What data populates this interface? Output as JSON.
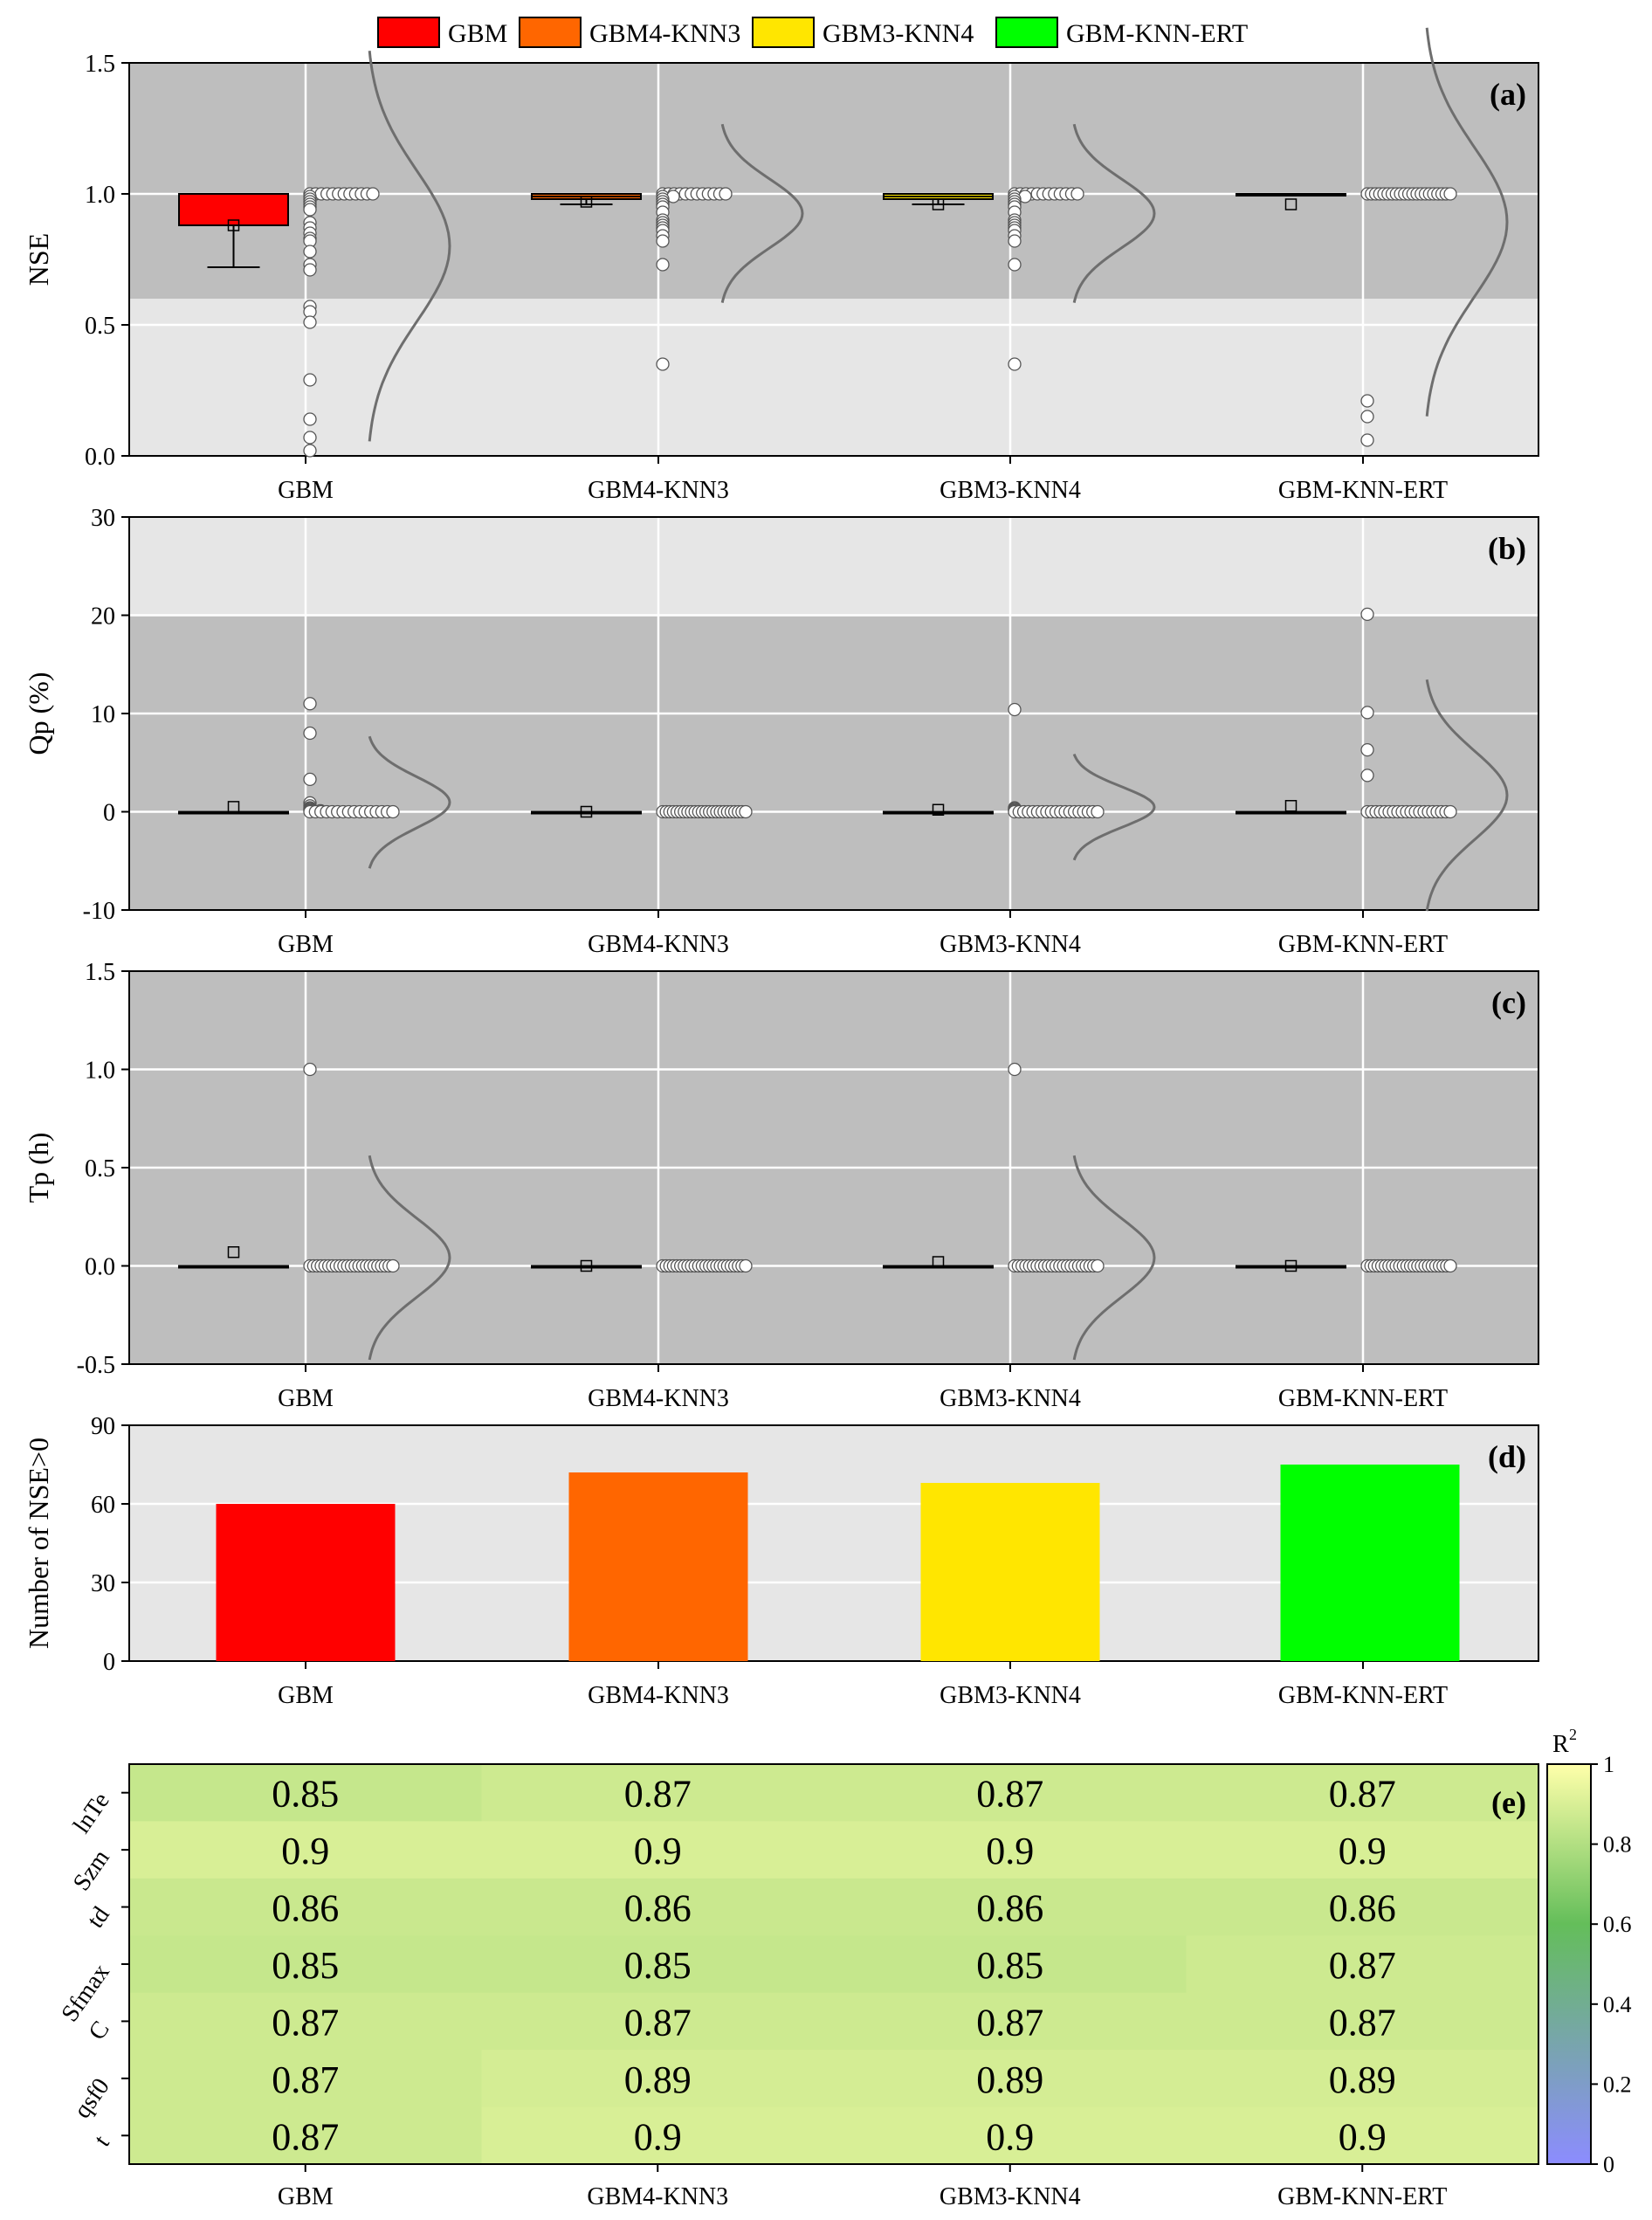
{
  "colors": {
    "GBM": "#ff0000",
    "GBM4-KNN3": "#ff6600",
    "GBM3-KNN4": "#ffe600",
    "GBM-KNN-ERT": "#00ff00",
    "panel_dark": "#bebebe",
    "panel_light": "#e6e6e6",
    "point_fill": "#ffffff",
    "curve": "#6e6e6e"
  },
  "legend": [
    "GBM",
    "GBM4-KNN3",
    "GBM3-KNN4",
    "GBM-KNN-ERT"
  ],
  "chart_data": [
    {
      "panel": "(a)",
      "type": "box",
      "ylabel": "NSE",
      "ylim": [
        0.0,
        1.5
      ],
      "yticks": [
        "0.0",
        "0.5",
        "1.0",
        "1.5"
      ],
      "categories": [
        "GBM",
        "GBM4-KNN3",
        "GBM3-KNN4",
        "GBM-KNN-ERT"
      ],
      "shaded_band": {
        "from": 0.6,
        "to": 1.5,
        "shade": "dark"
      },
      "series": [
        {
          "name": "GBM",
          "q1": 0.88,
          "median": 1.0,
          "q3": 1.0,
          "whisker_low": 0.72,
          "whisker_high": 1.0,
          "mean": 0.88,
          "points": [
            1.0,
            1.0,
            1.0,
            1.0,
            1.0,
            1.0,
            1.0,
            1.0,
            1.0,
            1.0,
            1.0,
            1.0,
            0.99,
            0.98,
            0.97,
            0.96,
            0.95,
            0.94,
            0.89,
            0.87,
            0.85,
            0.83,
            0.82,
            0.78,
            0.73,
            0.71,
            0.57,
            0.55,
            0.51,
            0.29,
            0.14,
            0.07,
            0.02
          ]
        },
        {
          "name": "GBM4-KNN3",
          "q1": 0.98,
          "median": 0.99,
          "q3": 1.0,
          "whisker_low": 0.96,
          "whisker_high": 1.0,
          "mean": 0.97,
          "points": [
            1.0,
            1.0,
            1.0,
            1.0,
            1.0,
            1.0,
            1.0,
            1.0,
            1.0,
            1.0,
            1.0,
            1.0,
            0.99,
            0.99,
            0.98,
            0.97,
            0.96,
            0.95,
            0.93,
            0.9,
            0.89,
            0.88,
            0.87,
            0.86,
            0.84,
            0.82,
            0.73,
            0.35
          ]
        },
        {
          "name": "GBM3-KNN4",
          "q1": 0.98,
          "median": 0.99,
          "q3": 1.0,
          "whisker_low": 0.96,
          "whisker_high": 1.0,
          "mean": 0.96,
          "points": [
            1.0,
            1.0,
            1.0,
            1.0,
            1.0,
            1.0,
            1.0,
            1.0,
            1.0,
            1.0,
            1.0,
            1.0,
            0.99,
            0.99,
            0.98,
            0.97,
            0.96,
            0.95,
            0.93,
            0.9,
            0.89,
            0.88,
            0.87,
            0.86,
            0.84,
            0.82,
            0.73,
            0.35
          ]
        },
        {
          "name": "GBM-KNN-ERT",
          "q1": 1.0,
          "median": 1.0,
          "q3": 1.0,
          "whisker_low": 1.0,
          "whisker_high": 1.0,
          "mean": 0.96,
          "points": [
            1.0,
            1.0,
            1.0,
            1.0,
            1.0,
            1.0,
            1.0,
            1.0,
            1.0,
            1.0,
            1.0,
            1.0,
            1.0,
            1.0,
            1.0,
            1.0,
            1.0,
            1.0,
            1.0,
            1.0,
            1.0,
            0.21,
            0.15,
            0.06
          ]
        }
      ]
    },
    {
      "panel": "(b)",
      "type": "box",
      "ylabel": "Qp (%)",
      "ylim": [
        -10,
        30
      ],
      "yticks": [
        "-10",
        "0",
        "10",
        "20",
        "30"
      ],
      "categories": [
        "GBM",
        "GBM4-KNN3",
        "GBM3-KNN4",
        "GBM-KNN-ERT"
      ],
      "shaded_band": {
        "from": -10,
        "to": 20,
        "shade": "dark"
      },
      "series": [
        {
          "name": "GBM",
          "q1": 0,
          "median": 0,
          "q3": 0,
          "whisker_low": 0,
          "whisker_high": 0,
          "mean": 0.5,
          "points": [
            11.0,
            8.0,
            3.3,
            0.9,
            0.6,
            0.4,
            0.3,
            0.2,
            0.1,
            0.1,
            0,
            0,
            0,
            0,
            0,
            0,
            0,
            0,
            0,
            0,
            0,
            0,
            0,
            0,
            0,
            0
          ]
        },
        {
          "name": "GBM4-KNN3",
          "q1": 0,
          "median": 0,
          "q3": 0,
          "whisker_low": 0,
          "whisker_high": 0,
          "mean": 0.0,
          "points": [
            0,
            0,
            0,
            0,
            0,
            0,
            0,
            0,
            0,
            0,
            0,
            0,
            0,
            0,
            0,
            0,
            0,
            0,
            0,
            0,
            0,
            0,
            0,
            0
          ]
        },
        {
          "name": "GBM3-KNN4",
          "q1": 0,
          "median": 0,
          "q3": 0,
          "whisker_low": 0,
          "whisker_high": 0,
          "mean": 0.2,
          "points": [
            10.4,
            0.4,
            0.3,
            0.2,
            0.1,
            0,
            0,
            0,
            0,
            0,
            0,
            0,
            0,
            0,
            0,
            0,
            0,
            0,
            0,
            0,
            0,
            0,
            0,
            0
          ]
        },
        {
          "name": "GBM-KNN-ERT",
          "q1": 0,
          "median": 0,
          "q3": 0,
          "whisker_low": 0,
          "whisker_high": 0,
          "mean": 0.6,
          "points": [
            20.1,
            10.1,
            6.3,
            3.7,
            0,
            0,
            0,
            0,
            0,
            0,
            0,
            0,
            0,
            0,
            0,
            0,
            0,
            0,
            0,
            0,
            0,
            0,
            0,
            0
          ]
        }
      ]
    },
    {
      "panel": "(c)",
      "type": "box",
      "ylabel": "Tp (h)",
      "ylim": [
        -0.5,
        1.5
      ],
      "yticks": [
        "-0.5",
        "0.0",
        "0.5",
        "1.0",
        "1.5"
      ],
      "categories": [
        "GBM",
        "GBM4-KNN3",
        "GBM3-KNN4",
        "GBM-KNN-ERT"
      ],
      "series": [
        {
          "name": "GBM",
          "q1": 0,
          "median": 0,
          "q3": 0,
          "whisker_low": 0,
          "whisker_high": 0,
          "mean": 0.07,
          "points": [
            1.0,
            0,
            0,
            0,
            0,
            0,
            0,
            0,
            0,
            0,
            0,
            0,
            0,
            0,
            0,
            0,
            0,
            0,
            0,
            0,
            0,
            0,
            0,
            0
          ]
        },
        {
          "name": "GBM4-KNN3",
          "q1": 0,
          "median": 0,
          "q3": 0,
          "whisker_low": 0,
          "whisker_high": 0,
          "mean": 0.0,
          "points": [
            0,
            0,
            0,
            0,
            0,
            0,
            0,
            0,
            0,
            0,
            0,
            0,
            0,
            0,
            0,
            0,
            0,
            0,
            0,
            0,
            0,
            0,
            0,
            0
          ]
        },
        {
          "name": "GBM3-KNN4",
          "q1": 0,
          "median": 0,
          "q3": 0,
          "whisker_low": 0,
          "whisker_high": 0,
          "mean": 0.02,
          "points": [
            1.0,
            0,
            0,
            0,
            0,
            0,
            0,
            0,
            0,
            0,
            0,
            0,
            0,
            0,
            0,
            0,
            0,
            0,
            0,
            0,
            0,
            0,
            0,
            0
          ]
        },
        {
          "name": "GBM-KNN-ERT",
          "q1": 0,
          "median": 0,
          "q3": 0,
          "whisker_low": 0,
          "whisker_high": 0,
          "mean": 0.0,
          "points": [
            0,
            0,
            0,
            0,
            0,
            0,
            0,
            0,
            0,
            0,
            0,
            0,
            0,
            0,
            0,
            0,
            0,
            0,
            0,
            0,
            0,
            0,
            0,
            0
          ]
        }
      ]
    },
    {
      "panel": "(d)",
      "type": "bar",
      "ylabel": "Number of NSE>0",
      "ylim": [
        0,
        90
      ],
      "yticks": [
        "0",
        "30",
        "60",
        "90"
      ],
      "categories": [
        "GBM",
        "GBM4-KNN3",
        "GBM3-KNN4",
        "GBM-KNN-ERT"
      ],
      "values": [
        60,
        72,
        68,
        75
      ]
    },
    {
      "panel": "(e)",
      "type": "heatmap",
      "colorbar_label": "R",
      "colorbar_sup": "2",
      "colorbar_ticks": [
        "0",
        "0.2",
        "0.4",
        "0.6",
        "0.8",
        "1"
      ],
      "rows": [
        "lnTe",
        "Szm",
        "td",
        "Sfmax",
        "C",
        "qsf0",
        "t"
      ],
      "columns": [
        "GBM",
        "GBM4-KNN3",
        "GBM3-KNN4",
        "GBM-KNN-ERT"
      ],
      "values": [
        [
          0.85,
          0.87,
          0.87,
          0.87
        ],
        [
          0.9,
          0.9,
          0.9,
          0.9
        ],
        [
          0.86,
          0.86,
          0.86,
          0.86
        ],
        [
          0.85,
          0.85,
          0.85,
          0.87
        ],
        [
          0.87,
          0.87,
          0.87,
          0.87
        ],
        [
          0.87,
          0.89,
          0.89,
          0.89
        ],
        [
          0.87,
          0.9,
          0.9,
          0.9
        ]
      ],
      "labels": [
        [
          "0.85",
          "0.87",
          "0.87",
          "0.87"
        ],
        [
          "0.9",
          "0.9",
          "0.9",
          "0.9"
        ],
        [
          "0.86",
          "0.86",
          "0.86",
          "0.86"
        ],
        [
          "0.85",
          "0.85",
          "0.85",
          "0.87"
        ],
        [
          "0.87",
          "0.87",
          "0.87",
          "0.87"
        ],
        [
          "0.87",
          "0.89",
          "0.89",
          "0.89"
        ],
        [
          "0.87",
          "0.9",
          "0.9",
          "0.9"
        ]
      ]
    }
  ]
}
